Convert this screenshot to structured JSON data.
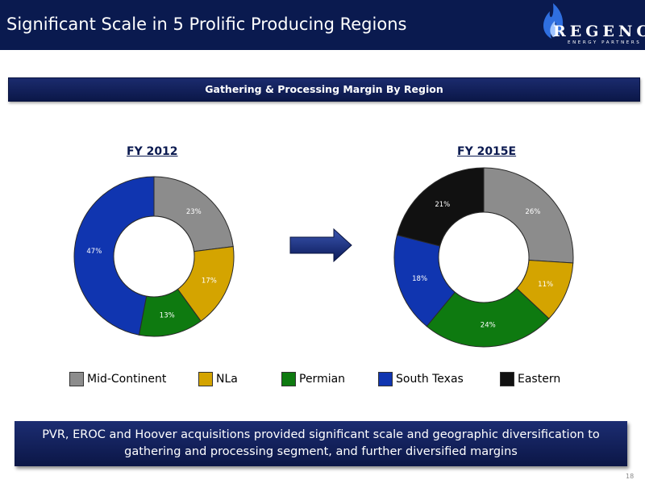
{
  "header": {
    "title": "Significant Scale in 5 Prolific Producing Regions"
  },
  "logo": {
    "word": "REGENCY",
    "sub": "ENERGY PARTNERS"
  },
  "banner": {
    "text": "Gathering & Processing Margin By Region"
  },
  "chart_data": [
    {
      "type": "pie",
      "title": "FY 2012",
      "categories": [
        "Mid-Continent",
        "NLa",
        "Permian",
        "South Texas"
      ],
      "values": [
        23,
        17,
        13,
        47
      ],
      "labels": [
        "23%",
        "17%",
        "13%",
        "47%"
      ]
    },
    {
      "type": "pie",
      "title": "FY 2015E",
      "categories": [
        "Mid-Continent",
        "NLa",
        "Permian",
        "South Texas",
        "Eastern"
      ],
      "values": [
        26,
        11,
        24,
        18,
        21
      ],
      "labels": [
        "26%",
        "11%",
        "24%",
        "18%",
        "21%"
      ]
    }
  ],
  "legend": [
    {
      "label": "Mid-Continent",
      "color": "#8c8c8c"
    },
    {
      "label": "NLa",
      "color": "#d4a400"
    },
    {
      "label": "Permian",
      "color": "#0e7a10"
    },
    {
      "label": "South Texas",
      "color": "#1035b0"
    },
    {
      "label": "Eastern",
      "color": "#111111"
    }
  ],
  "callout": {
    "line1": "PVR, EROC and Hoover acquisitions provided significant scale and geographic diversification to",
    "line2": "gathering and processing segment, and further diversified margins"
  },
  "page_number": "18"
}
